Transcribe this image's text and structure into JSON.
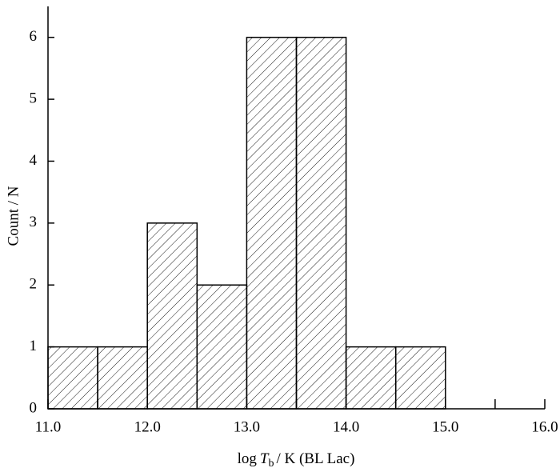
{
  "chart_data": {
    "type": "histogram",
    "y_label": "Count / N",
    "x_label": {
      "prefix": "log",
      "symbol": "T",
      "subscript": "b",
      "suffix": "/ K (BL Lac)"
    },
    "bins": [
      11.0,
      11.5,
      12.0,
      12.5,
      13.0,
      13.5,
      14.0,
      14.5,
      15.0
    ],
    "counts": [
      1,
      1,
      3,
      2,
      6,
      6,
      1,
      1
    ],
    "color": "#000000",
    "hatch": "diagonal",
    "xlim": [
      11,
      16
    ],
    "ylim": [
      0,
      6.5
    ],
    "xticks": [
      {
        "value": 11,
        "label": "11.0"
      },
      {
        "value": 12,
        "label": "12.0"
      },
      {
        "value": 13,
        "label": "13.0"
      },
      {
        "value": 14,
        "label": "14.0"
      },
      {
        "value": 15,
        "label": "15.0"
      },
      {
        "value": 16,
        "label": "16.0"
      }
    ],
    "xminor_ticks": [
      11.5,
      12.5,
      13.5,
      14.5,
      15.5
    ],
    "yticks": [
      0,
      1,
      2,
      3,
      4,
      5,
      6
    ]
  }
}
